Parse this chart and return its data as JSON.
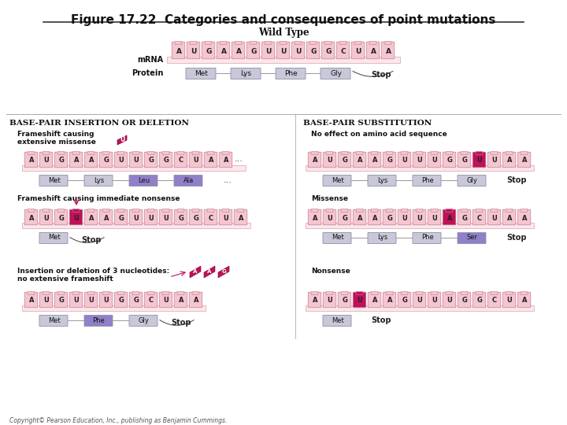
{
  "title": "Figure 17.22  Categories and consequences of point mutations",
  "background_color": "#ffffff",
  "copyright": "Copyright© Pearson Education, Inc., publishing as Benjamin Cummings.",
  "wildtype_label": "Wild Type",
  "wildtype_mrna": [
    "A",
    "U",
    "G",
    "A",
    "A",
    "G",
    "U",
    "U",
    "U",
    "G",
    "G",
    "C",
    "U",
    "A",
    "A"
  ],
  "wildtype_protein": [
    "Met",
    "Lys",
    "Phe",
    "Gly"
  ],
  "left_section_title": "Base-Pair Insertion or Deletion",
  "right_section_title": "Base-Pair Substitution",
  "sub1_title": "Frameshift causing\nextensive missense",
  "sub1_mrna": [
    "A",
    "U",
    "G",
    "A",
    "A",
    "G",
    "U",
    "U",
    "G",
    "G",
    "C",
    "U",
    "A",
    "A"
  ],
  "sub1_protein_normal": [
    "Met",
    "Lys"
  ],
  "sub1_protein_changed": [
    "Leu",
    "Ala"
  ],
  "sub2_title": "Frameshift causing immediate nonsense",
  "sub2_mrna": [
    "A",
    "U",
    "G",
    "U",
    "A",
    "A",
    "G",
    "U",
    "U",
    "U",
    "G",
    "G",
    "C",
    "U",
    "A"
  ],
  "sub2_highlight_idx": 3,
  "sub3_title": "Insertion or deletion of 3 nucleotides:\nno extensive frameshift",
  "sub3_mrna": [
    "A",
    "U",
    "G",
    "U",
    "U",
    "U",
    "G",
    "G",
    "C",
    "U",
    "A",
    "A"
  ],
  "sub3_insert": [
    "A",
    "A",
    "G"
  ],
  "sub3_protein_normal": [
    "Met",
    "Gly"
  ],
  "sub3_protein_changed": [
    "Phe"
  ],
  "sub4_title": "No effect on amino acid sequence",
  "sub4_mrna": [
    "A",
    "U",
    "G",
    "A",
    "A",
    "G",
    "U",
    "U",
    "U",
    "G",
    "G",
    "U",
    "U",
    "A",
    "A"
  ],
  "sub4_protein": [
    "Met",
    "Lys",
    "Phe",
    "Gly"
  ],
  "sub4_highlight_idx": 11,
  "sub5_title": "Missense",
  "sub5_mrna": [
    "A",
    "U",
    "G",
    "A",
    "A",
    "G",
    "U",
    "U",
    "U",
    "A",
    "G",
    "C",
    "U",
    "A",
    "A"
  ],
  "sub5_protein_normal": [
    "Met",
    "Lys",
    "Phe"
  ],
  "sub5_protein_changed": [
    "Ser"
  ],
  "sub5_highlight_idx": 9,
  "sub6_title": "Nonsense",
  "sub6_mrna": [
    "A",
    "U",
    "G",
    "U",
    "A",
    "A",
    "G",
    "U",
    "U",
    "U",
    "G",
    "G",
    "C",
    "U",
    "A"
  ],
  "sub6_highlight_idx": 3,
  "nuc_color": "#f5c5d0",
  "nuc_highlight_pink": "#e8708a",
  "nuc_highlight_dark": "#b03060",
  "nuc_edge": "#c08090",
  "prot_color_normal": "#c8c8d8",
  "prot_color_changed": "#8878c8",
  "prot_edge": "#9090aa",
  "mrna_bar_color": "#fce8ec",
  "mrna_bar_edge": "#e0b0b8"
}
